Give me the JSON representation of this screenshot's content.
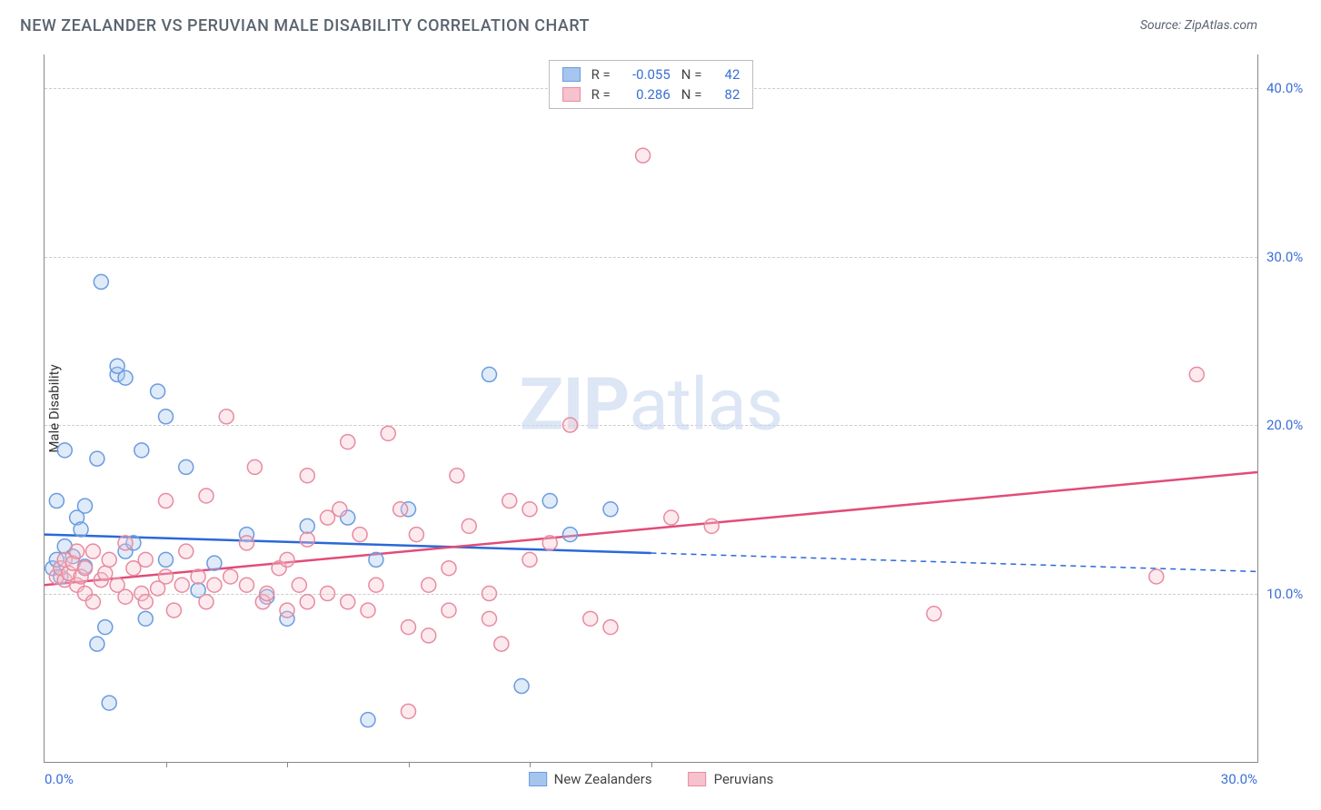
{
  "header": {
    "title": "NEW ZEALANDER VS PERUVIAN MALE DISABILITY CORRELATION CHART",
    "source_label": "Source:",
    "source_name": "ZipAtlas.com"
  },
  "chart": {
    "type": "scatter",
    "y_axis_label": "Male Disability",
    "watermark_bold": "ZIP",
    "watermark_light": "atlas",
    "xlim": [
      0,
      30
    ],
    "ylim": [
      0,
      42
    ],
    "x_ticks": [
      {
        "pos": 0,
        "label": "0.0%"
      },
      {
        "pos": 30,
        "label": "30.0%"
      }
    ],
    "x_minor_ticks": [
      3,
      6,
      9,
      12,
      15
    ],
    "y_gridlines": [
      10,
      20,
      30,
      40
    ],
    "y_tick_labels": [
      "10.0%",
      "20.0%",
      "30.0%",
      "40.0%"
    ],
    "background_color": "#ffffff",
    "grid_color": "#cccccc",
    "axis_color": "#888888",
    "tick_label_color": "#3b6fd6",
    "marker_radius": 8,
    "marker_stroke_width": 1.5,
    "marker_fill_opacity": 0.35,
    "line_stroke_width": 2.5,
    "series": [
      {
        "name": "New Zealanders",
        "color_fill": "#a6c5ee",
        "color_stroke": "#6a9be0",
        "line_color": "#2b68d8",
        "R": "-0.055",
        "N": "42",
        "trend_line": {
          "x1": 0,
          "y1": 13.5,
          "x2": 15,
          "y2": 12.4
        },
        "trend_extend": {
          "x1": 15,
          "y1": 12.4,
          "x2": 30,
          "y2": 11.3
        },
        "points": [
          [
            0.2,
            11.5
          ],
          [
            0.3,
            12
          ],
          [
            0.3,
            15.5
          ],
          [
            0.4,
            11
          ],
          [
            0.5,
            12.8
          ],
          [
            0.5,
            18.5
          ],
          [
            0.7,
            12.2
          ],
          [
            0.8,
            14.5
          ],
          [
            0.9,
            13.8
          ],
          [
            1.0,
            11.6
          ],
          [
            1.0,
            15.2
          ],
          [
            1.3,
            7.0
          ],
          [
            1.3,
            18.0
          ],
          [
            1.4,
            28.5
          ],
          [
            1.5,
            8.0
          ],
          [
            1.6,
            3.5
          ],
          [
            1.8,
            23.0
          ],
          [
            1.8,
            23.5
          ],
          [
            2.0,
            22.8
          ],
          [
            2.0,
            12.5
          ],
          [
            2.2,
            13.0
          ],
          [
            2.4,
            18.5
          ],
          [
            2.5,
            8.5
          ],
          [
            2.8,
            22.0
          ],
          [
            3.0,
            12.0
          ],
          [
            3.0,
            20.5
          ],
          [
            3.5,
            17.5
          ],
          [
            3.8,
            10.2
          ],
          [
            4.2,
            11.8
          ],
          [
            5.0,
            13.5
          ],
          [
            5.5,
            9.8
          ],
          [
            6.0,
            8.5
          ],
          [
            6.5,
            14.0
          ],
          [
            7.5,
            14.5
          ],
          [
            8.0,
            2.5
          ],
          [
            8.2,
            12.0
          ],
          [
            9.0,
            15.0
          ],
          [
            11.0,
            23.0
          ],
          [
            11.8,
            4.5
          ],
          [
            12.5,
            15.5
          ],
          [
            13.0,
            13.5
          ],
          [
            14.0,
            15.0
          ]
        ]
      },
      {
        "name": "Peruvians",
        "color_fill": "#f5c2cd",
        "color_stroke": "#e88ba0",
        "line_color": "#e04d78",
        "R": "0.286",
        "N": "82",
        "trend_line": {
          "x1": 0,
          "y1": 10.5,
          "x2": 30,
          "y2": 17.2
        },
        "trend_extend": null,
        "points": [
          [
            0.3,
            11
          ],
          [
            0.4,
            11.5
          ],
          [
            0.5,
            10.8
          ],
          [
            0.5,
            12.0
          ],
          [
            0.6,
            11.2
          ],
          [
            0.7,
            11.8
          ],
          [
            0.8,
            10.5
          ],
          [
            0.8,
            12.5
          ],
          [
            0.9,
            11.0
          ],
          [
            1.0,
            10.0
          ],
          [
            1.0,
            11.5
          ],
          [
            1.2,
            12.5
          ],
          [
            1.2,
            9.5
          ],
          [
            1.4,
            10.8
          ],
          [
            1.5,
            11.2
          ],
          [
            1.6,
            12.0
          ],
          [
            1.8,
            10.5
          ],
          [
            2.0,
            13.0
          ],
          [
            2.0,
            9.8
          ],
          [
            2.2,
            11.5
          ],
          [
            2.4,
            10.0
          ],
          [
            2.5,
            12.0
          ],
          [
            2.5,
            9.5
          ],
          [
            2.8,
            10.3
          ],
          [
            3.0,
            15.5
          ],
          [
            3.0,
            11.0
          ],
          [
            3.2,
            9.0
          ],
          [
            3.4,
            10.5
          ],
          [
            3.5,
            12.5
          ],
          [
            3.8,
            11.0
          ],
          [
            4.0,
            9.5
          ],
          [
            4.0,
            15.8
          ],
          [
            4.2,
            10.5
          ],
          [
            4.5,
            20.5
          ],
          [
            4.6,
            11.0
          ],
          [
            5.0,
            13.0
          ],
          [
            5.0,
            10.5
          ],
          [
            5.2,
            17.5
          ],
          [
            5.4,
            9.5
          ],
          [
            5.5,
            10.0
          ],
          [
            5.8,
            11.5
          ],
          [
            6.0,
            12.0
          ],
          [
            6.0,
            9.0
          ],
          [
            6.3,
            10.5
          ],
          [
            6.5,
            17.0
          ],
          [
            6.5,
            9.5
          ],
          [
            7.0,
            14.5
          ],
          [
            7.0,
            10.0
          ],
          [
            7.3,
            15.0
          ],
          [
            7.5,
            9.5
          ],
          [
            7.5,
            19.0
          ],
          [
            7.8,
            13.5
          ],
          [
            8.0,
            9.0
          ],
          [
            8.2,
            10.5
          ],
          [
            8.5,
            19.5
          ],
          [
            8.8,
            15.0
          ],
          [
            9.0,
            8.0
          ],
          [
            9.2,
            13.5
          ],
          [
            9.5,
            10.5
          ],
          [
            9.5,
            7.5
          ],
          [
            10.0,
            11.5
          ],
          [
            10.0,
            9.0
          ],
          [
            10.2,
            17.0
          ],
          [
            10.5,
            14.0
          ],
          [
            11.0,
            10.0
          ],
          [
            11.0,
            8.5
          ],
          [
            11.3,
            7.0
          ],
          [
            11.5,
            15.5
          ],
          [
            12.0,
            12.0
          ],
          [
            12.0,
            15.0
          ],
          [
            12.5,
            13.0
          ],
          [
            13.0,
            20.0
          ],
          [
            13.5,
            8.5
          ],
          [
            14.0,
            8.0
          ],
          [
            14.8,
            36.0
          ],
          [
            15.5,
            14.5
          ],
          [
            16.5,
            14.0
          ],
          [
            22.0,
            8.8
          ],
          [
            27.5,
            11.0
          ],
          [
            28.5,
            23.0
          ],
          [
            9.0,
            3.0
          ],
          [
            6.5,
            13.2
          ]
        ]
      }
    ],
    "stats_legend": {
      "r_label": "R =",
      "n_label": "N ="
    }
  }
}
